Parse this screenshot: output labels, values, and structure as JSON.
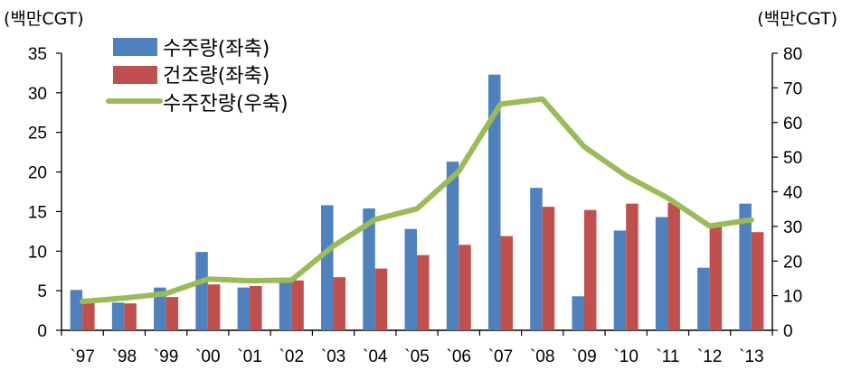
{
  "chart_data": {
    "type": "bar",
    "categories": [
      "`97",
      "`98",
      "`99",
      "`00",
      "`01",
      "`02",
      "`03",
      "`04",
      "`05",
      "`06",
      "`07",
      "`08",
      "`09",
      "`10",
      "`11",
      "`12",
      "`13"
    ],
    "left_axis": {
      "unit_label": "(백만CGT)",
      "ylim": [
        0,
        35
      ],
      "ticks": [
        "0",
        "5",
        "10",
        "15",
        "20",
        "25",
        "30",
        "35"
      ]
    },
    "right_axis": {
      "unit_label": "(백만CGT)",
      "ylim": [
        0,
        80
      ],
      "ticks": [
        "0",
        "10",
        "20",
        "30",
        "40",
        "50",
        "60",
        "70",
        "80"
      ]
    },
    "series": [
      {
        "name": "수주량(좌축)",
        "kind": "bar",
        "axis": "left",
        "color": "#4F81BD",
        "values": [
          5.1,
          3.5,
          5.4,
          9.9,
          5.4,
          6.5,
          15.8,
          15.4,
          12.8,
          21.3,
          32.3,
          18.0,
          4.3,
          12.6,
          14.3,
          7.9,
          16.0
        ]
      },
      {
        "name": "건조량(좌축)",
        "kind": "bar",
        "axis": "left",
        "color": "#C0504D",
        "values": [
          4.0,
          3.4,
          4.2,
          5.8,
          5.6,
          6.3,
          6.7,
          7.8,
          9.5,
          10.8,
          11.9,
          15.6,
          15.2,
          16.0,
          16.1,
          13.3,
          12.4
        ]
      },
      {
        "name": "수주잔량(우축)",
        "kind": "line",
        "axis": "right",
        "color": "#9BBB59",
        "values": [
          8.3,
          9.3,
          10.6,
          14.8,
          14.3,
          14.5,
          24.3,
          32.0,
          35.1,
          45.9,
          65.3,
          66.8,
          53.0,
          44.6,
          38.2,
          30.1,
          31.9
        ]
      }
    ]
  }
}
